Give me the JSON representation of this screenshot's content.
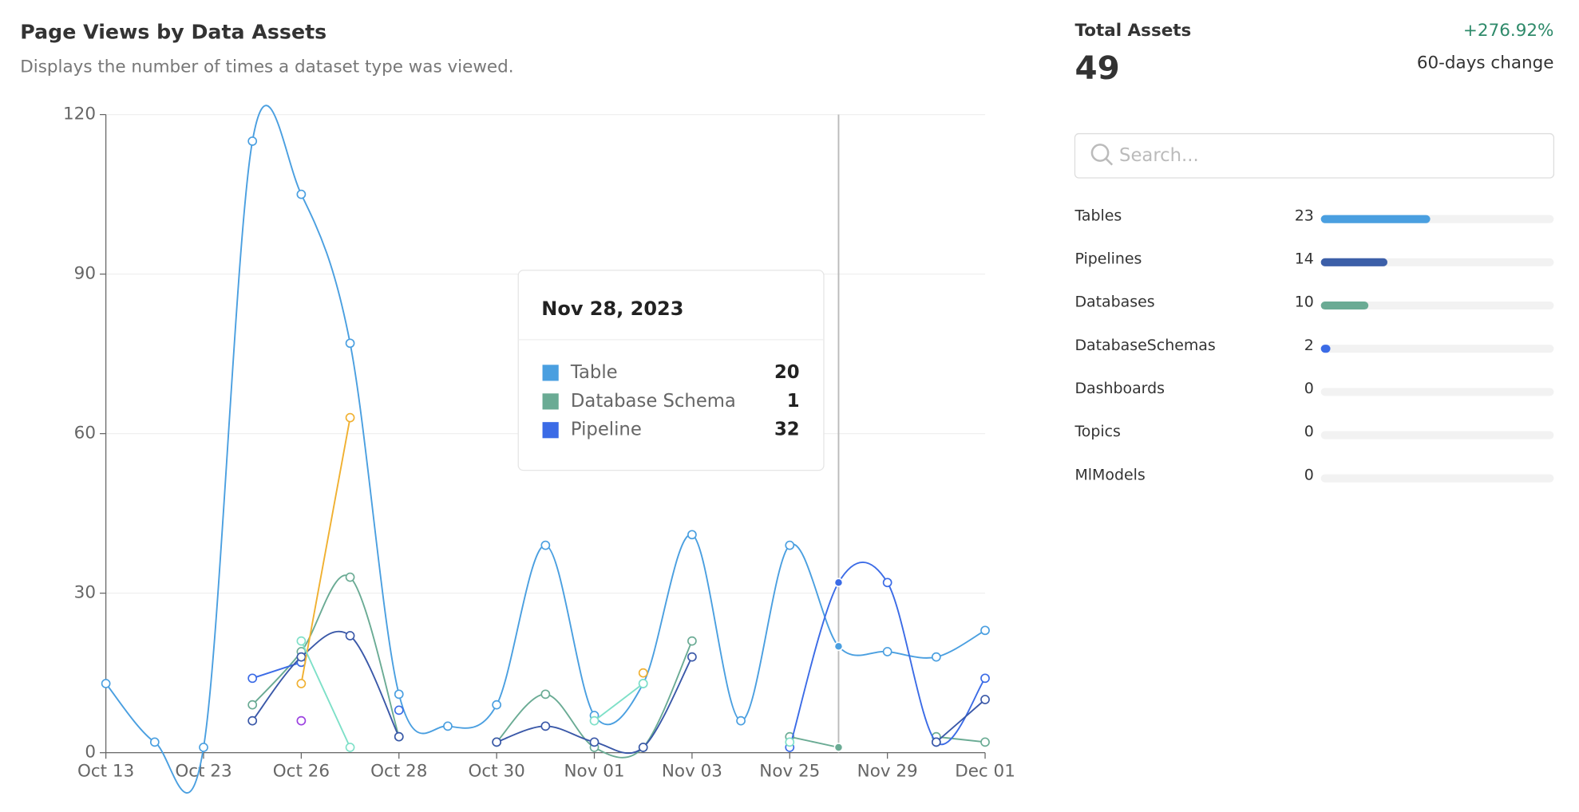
{
  "chart_data": {
    "type": "line",
    "title": "Page Views by Data Assets",
    "subtitle": "Displays the number of times a dataset type was viewed.",
    "categories": [
      "Oct 13",
      null,
      "Oct 23",
      null,
      "Oct 26",
      null,
      "Oct 28",
      null,
      "Oct 30",
      null,
      "Nov 01",
      null,
      "Nov 03",
      null,
      "Nov 25",
      null,
      "Nov 29",
      null,
      "Dec 01"
    ],
    "series": [
      {
        "name": "Table",
        "color": "#4a9fe0",
        "values": [
          13,
          2,
          1,
          115,
          105,
          77,
          11,
          5,
          9,
          39,
          7,
          13,
          41,
          6,
          39,
          20,
          19,
          18,
          23
        ]
      },
      {
        "name": "Database Schema",
        "color": "#6aab94",
        "values": [
          null,
          null,
          null,
          9,
          19,
          33,
          3,
          null,
          2,
          11,
          1,
          1,
          21,
          null,
          3,
          1,
          null,
          3,
          2
        ]
      },
      {
        "name": "Pipeline",
        "color": "#3b6be6",
        "values": [
          null,
          null,
          null,
          14,
          17,
          null,
          8,
          null,
          null,
          null,
          null,
          null,
          null,
          null,
          1,
          32,
          32,
          2,
          14
        ]
      },
      {
        "color": "#3a58a8",
        "values": [
          null,
          null,
          null,
          6,
          18,
          22,
          3,
          null,
          2,
          5,
          2,
          1,
          18,
          null,
          null,
          null,
          null,
          2,
          10
        ]
      },
      {
        "color": "#f0b030",
        "values": [
          null,
          null,
          null,
          null,
          13,
          63,
          null,
          null,
          null,
          null,
          null,
          15,
          null,
          null,
          null,
          null,
          null,
          null,
          null
        ]
      },
      {
        "color": "#7ee0c8",
        "values": [
          null,
          null,
          null,
          null,
          21,
          1,
          null,
          null,
          null,
          null,
          6,
          13,
          null,
          null,
          2,
          null,
          null,
          null,
          null
        ]
      },
      {
        "color": "#9b40e0",
        "values": [
          null,
          null,
          null,
          null,
          6,
          null,
          null,
          null,
          null,
          null,
          null,
          null,
          null,
          null,
          null,
          null,
          null,
          null,
          null
        ]
      }
    ],
    "ylim": [
      0,
      120
    ],
    "yticks": [
      0,
      30,
      60,
      90,
      120
    ],
    "grid": true,
    "tooltip": {
      "title": "Nov 28, 2023"
    }
  },
  "summary": {
    "label": "Total Assets",
    "total": 49,
    "change": "+276.92%",
    "change_label": "60-days change"
  },
  "search": {
    "placeholder": "Search..."
  },
  "assets": [
    {
      "name": "Tables",
      "count": 23,
      "color": "#4a9fe0"
    },
    {
      "name": "Pipelines",
      "count": 14,
      "color": "#3c5fa8"
    },
    {
      "name": "Databases",
      "count": 10,
      "color": "#6aab94"
    },
    {
      "name": "DatabaseSchemas",
      "count": 2,
      "color": "#3b6be6"
    },
    {
      "name": "Dashboards",
      "count": 0,
      "color": "#3b6be6"
    },
    {
      "name": "Topics",
      "count": 0,
      "color": "#3b6be6"
    },
    {
      "name": "MlModels",
      "count": 0,
      "color": "#3b6be6"
    }
  ]
}
